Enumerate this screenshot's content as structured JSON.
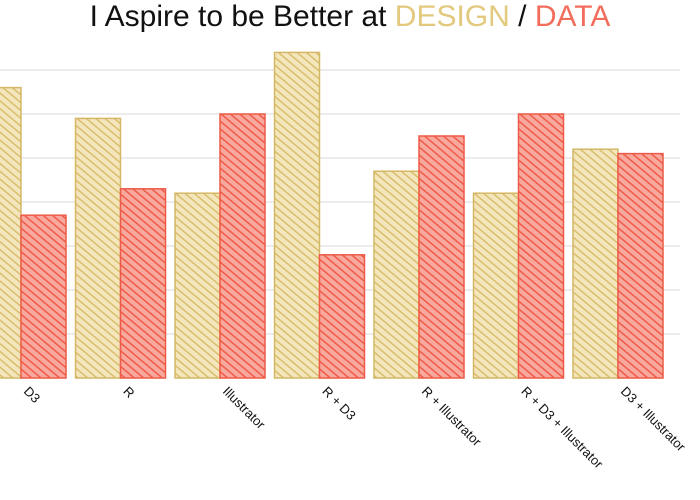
{
  "chart_data": {
    "type": "bar",
    "title": {
      "prefix": "I Aspire to be Better at ",
      "series_a_word": "DESIGN",
      "separator": " / ",
      "series_b_word": "DATA"
    },
    "categories": [
      "D3",
      "R",
      "Illustrator",
      "R + D3",
      "R + Illustrator",
      "R + D3 + Illustrator",
      "D3 + Illustrator"
    ],
    "series": [
      {
        "name": "DESIGN",
        "color": "#e2c97e",
        "values": [
          6.6,
          5.9,
          4.2,
          7.4,
          4.7,
          4.2,
          5.2
        ]
      },
      {
        "name": "DATA",
        "color": "#f26d5b",
        "values": [
          3.7,
          4.3,
          6.0,
          2.8,
          5.5,
          6.0,
          5.1
        ]
      }
    ],
    "ylim": [
      0,
      8
    ],
    "grid": true,
    "xlabel": "",
    "ylabel": ""
  }
}
